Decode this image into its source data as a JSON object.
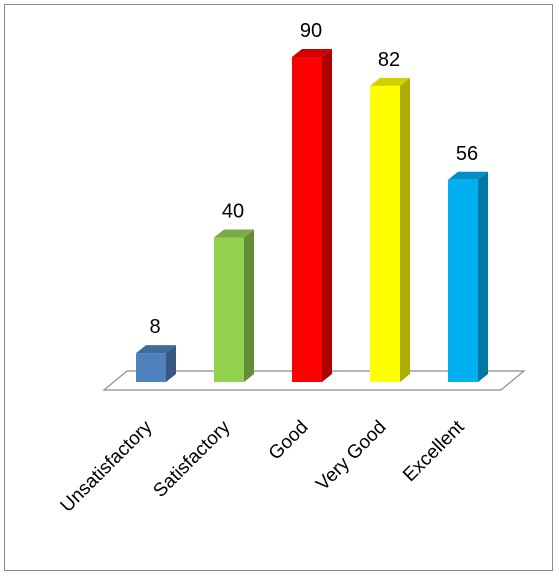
{
  "chart_data": {
    "type": "bar",
    "style": "3d-column",
    "categories": [
      "Unsatisfactory",
      "Satisfactory",
      "Good",
      "Very Good",
      "Excellent"
    ],
    "values": [
      8,
      40,
      90,
      82,
      56
    ],
    "colors": [
      "#4F81BD",
      "#92D050",
      "#FF0000",
      "#FFFF00",
      "#00B0F0"
    ],
    "data_labels": true,
    "title": "",
    "xlabel": "",
    "ylabel": "",
    "ylim": [
      0,
      90
    ],
    "grid": false,
    "legend": "none"
  }
}
